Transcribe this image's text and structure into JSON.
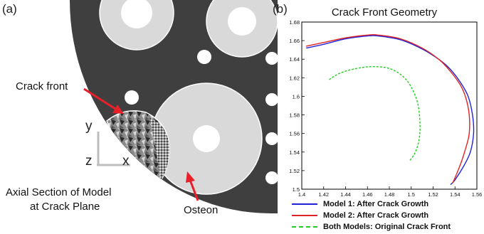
{
  "panel_a": {
    "label": "(a)",
    "labels": {
      "crack_front": "Crack front",
      "axial_section_line1": "Axial Section of Model",
      "axial_section_line2": "at Crack Plane",
      "osteon": "Osteon"
    },
    "axis_glyphs": {
      "y": "y",
      "z": "z",
      "x": "x"
    },
    "colors": {
      "bone": "#3f3f3f",
      "osteon_fill": "#d9d9d9",
      "pore": "#ffffff",
      "arrow": "#e8202a"
    }
  },
  "panel_b": {
    "label": "(b)",
    "colors": {
      "model1": "#2222d8",
      "model2": "#e02424",
      "original": "#22cc22"
    }
  },
  "chart_data": {
    "type": "line",
    "title": "Crack Front Geometry",
    "xlim": [
      1.4,
      1.56
    ],
    "ylim": [
      1.5,
      1.68
    ],
    "xticks": [
      "1.4",
      "1.42",
      "1.44",
      "1.46",
      "1.48",
      "1.5",
      "1.52",
      "1.54",
      "1.56"
    ],
    "yticks": [
      "1.5",
      "1.52",
      "1.54",
      "1.56",
      "1.58",
      "1.6",
      "1.62",
      "1.64",
      "1.66",
      "1.68"
    ],
    "grid": false,
    "legend_position": "bottom",
    "series": [
      {
        "name": "Model 1: After Crack Growth",
        "color": "#2222d8",
        "style": "solid",
        "x": [
          1.404,
          1.42,
          1.44,
          1.46,
          1.47,
          1.49,
          1.51,
          1.525,
          1.535,
          1.545,
          1.552,
          1.556,
          1.557,
          1.554,
          1.548,
          1.54,
          1.536
        ],
        "y": [
          1.652,
          1.656,
          1.662,
          1.665,
          1.665,
          1.661,
          1.651,
          1.64,
          1.63,
          1.615,
          1.6,
          1.58,
          1.56,
          1.54,
          1.525,
          1.51,
          1.505
        ]
      },
      {
        "name": "Model 2: After Crack Growth",
        "color": "#e02424",
        "style": "solid",
        "x": [
          1.404,
          1.42,
          1.44,
          1.46,
          1.47,
          1.49,
          1.51,
          1.525,
          1.535,
          1.545,
          1.55,
          1.553,
          1.553,
          1.55,
          1.546,
          1.541,
          1.538
        ],
        "y": [
          1.654,
          1.658,
          1.663,
          1.666,
          1.666,
          1.662,
          1.652,
          1.64,
          1.628,
          1.612,
          1.598,
          1.58,
          1.56,
          1.545,
          1.53,
          1.515,
          1.507
        ]
      },
      {
        "name": "Both Models: Original Crack Front",
        "color": "#22cc22",
        "style": "dashed",
        "x": [
          1.425,
          1.435,
          1.45,
          1.465,
          1.48,
          1.492,
          1.5,
          1.506,
          1.508,
          1.507,
          1.503,
          1.498
        ],
        "y": [
          1.618,
          1.625,
          1.63,
          1.632,
          1.63,
          1.622,
          1.61,
          1.592,
          1.57,
          1.552,
          1.538,
          1.53
        ]
      }
    ]
  }
}
